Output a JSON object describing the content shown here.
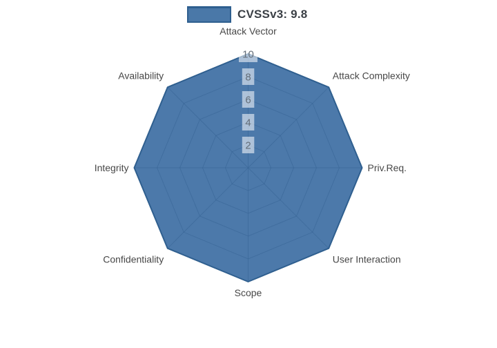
{
  "legend": {
    "label": "CVSSv3: 9.8",
    "swatch_fill": "#4a78a8",
    "swatch_border": "#2e5f8f"
  },
  "chart_data": {
    "type": "radar",
    "title": "CVSSv3: 9.8",
    "categories": [
      "Attack Vector",
      "Attack Complexity",
      "Priv.Req.",
      "User Interaction",
      "Scope",
      "Confidentiality",
      "Integrity",
      "Availability"
    ],
    "series": [
      {
        "name": "CVSSv3: 9.8",
        "values": [
          10,
          10,
          10,
          10,
          10,
          10,
          10,
          10
        ]
      }
    ],
    "radial_axis": {
      "range": [
        0,
        10
      ],
      "ticks": [
        2,
        4,
        6,
        8,
        10
      ],
      "tick_labels": [
        "2",
        "4",
        "6",
        "8",
        "10"
      ],
      "tick_angle_deg": 90
    },
    "angular_axis": {
      "start_at": "top",
      "direction": "clockwise"
    },
    "grid": {
      "visible": true,
      "shape": "polygon",
      "color": "#8f8f8f"
    },
    "legend_position": "top-center",
    "colors": {
      "fill": "#285e99",
      "fill_opacity": 0.83,
      "fill_composite_on_white": "#4a78a8",
      "line": "#2f5f8f",
      "category_label": "#474747",
      "tick_label": "#646e79",
      "tick_label_bg": "#ffffff",
      "tick_label_bg_opacity": 0.55
    }
  }
}
